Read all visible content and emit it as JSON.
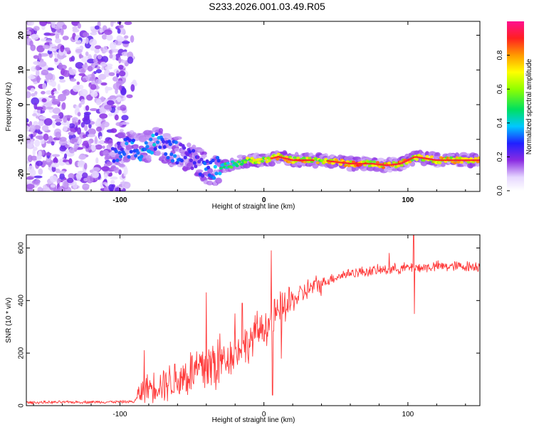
{
  "title": "S233.2026.001.03.49.R05",
  "chart_data": [
    {
      "type": "heatmap",
      "name": "spectrogram",
      "xlabel": "Height of straight line (km)",
      "ylabel": "Frequency (Hz)",
      "xlim": [
        -165,
        150
      ],
      "ylim": [
        -25,
        24
      ],
      "xticks": [
        -100,
        0,
        100
      ],
      "xtick_labels": [
        "-100",
        "0",
        "100"
      ],
      "yticks": [
        -20,
        -10,
        0,
        10,
        20
      ],
      "ytick_labels": [
        "-20",
        "-10",
        "0",
        "10",
        "20"
      ],
      "colorbar": {
        "label": "Normalized spectral amplitude",
        "range": [
          0,
          1
        ],
        "ticks": [
          0.0,
          0.2,
          0.4,
          0.6,
          0.8
        ],
        "tick_labels": [
          "0.0",
          "0.2",
          "0.4",
          "0.6",
          "0.8"
        ]
      },
      "ridge": {
        "description": "dominant frequency track",
        "x": [
          -105,
          -95,
          -85,
          -75,
          -65,
          -55,
          -45,
          -38,
          -30,
          -20,
          -10,
          0,
          10,
          20,
          40,
          60,
          75,
          85,
          95,
          105,
          120,
          150
        ],
        "y": [
          -15,
          -12,
          -13,
          -11,
          -13,
          -15,
          -17,
          -19,
          -18,
          -17,
          -16,
          -16,
          -15,
          -16,
          -16,
          -17,
          -17,
          -17.5,
          -17,
          -15,
          -16,
          -16
        ],
        "amplitude": [
          0.3,
          0.35,
          0.4,
          0.4,
          0.35,
          0.3,
          0.3,
          0.35,
          0.45,
          0.6,
          0.7,
          0.7,
          0.85,
          0.85,
          0.75,
          0.9,
          0.85,
          0.9,
          0.85,
          0.8,
          0.8,
          0.8
        ]
      }
    },
    {
      "type": "line",
      "name": "snr",
      "xlabel": "Height of straight line (km)",
      "ylabel": "SNR (10 * v/v)",
      "xlim": [
        -165,
        150
      ],
      "ylim": [
        0,
        650
      ],
      "xticks": [
        -100,
        0,
        100
      ],
      "xtick_labels": [
        "-100",
        "0",
        "100"
      ],
      "yticks": [
        0,
        200,
        400,
        600
      ],
      "ytick_labels": [
        "0",
        "200",
        "400",
        "600"
      ],
      "color": "#ff3a3a",
      "trend": {
        "x": [
          -165,
          -90,
          -85,
          -80,
          -70,
          -60,
          -50,
          -40,
          -30,
          -20,
          -10,
          -5,
          0,
          5,
          10,
          20,
          30,
          40,
          50,
          60,
          70,
          80,
          90,
          100,
          110,
          120,
          150
        ],
        "y": [
          12,
          15,
          55,
          70,
          85,
          100,
          125,
          145,
          170,
          200,
          240,
          280,
          300,
          320,
          350,
          400,
          440,
          465,
          490,
          505,
          510,
          515,
          520,
          525,
          525,
          530,
          530
        ]
      },
      "spikes": [
        {
          "x": -83,
          "y": 210
        },
        {
          "x": -40,
          "y": 430
        },
        {
          "x": -20,
          "y": 350
        },
        {
          "x": -15,
          "y": 390
        },
        {
          "x": 5,
          "y": 590
        },
        {
          "x": 6,
          "y": 40
        },
        {
          "x": 12,
          "y": 180
        },
        {
          "x": 87,
          "y": 580
        },
        {
          "x": 104,
          "y": 650
        },
        {
          "x": 104.5,
          "y": 350
        }
      ]
    }
  ]
}
